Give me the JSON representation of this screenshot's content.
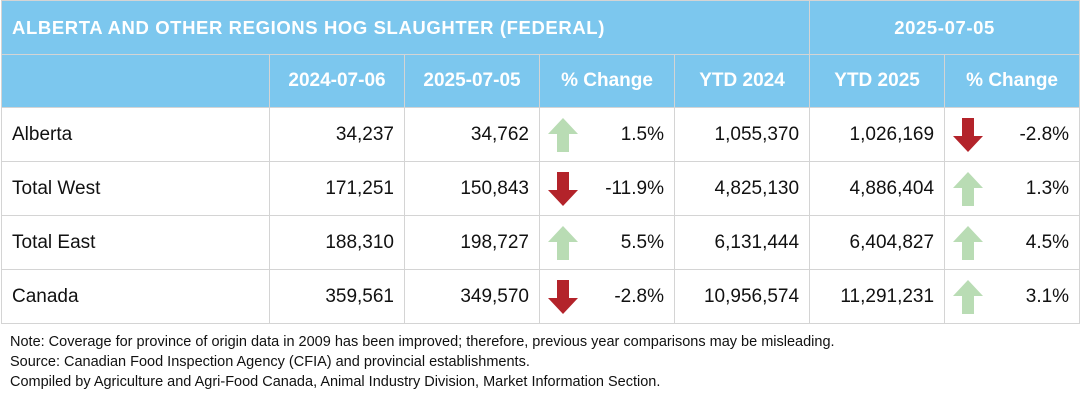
{
  "title": "ALBERTA AND OTHER REGIONS HOG SLAUGHTER (FEDERAL)",
  "title_date": "2025-07-05",
  "columns": [
    "2024-07-06",
    "2025-07-05",
    "% Change",
    "YTD 2024",
    "YTD 2025",
    "% Change"
  ],
  "colors": {
    "header_bg": "#7cc7ee",
    "up_arrow": "#b9dcb4",
    "down_arrow": "#b3232a"
  },
  "rows": [
    {
      "region": "Alberta",
      "week_2024": "34,237",
      "week_2025": "34,762",
      "week_change": "1.5%",
      "week_dir": "up",
      "ytd_2024": "1,055,370",
      "ytd_2025": "1,026,169",
      "ytd_change": "-2.8%",
      "ytd_dir": "down"
    },
    {
      "region": "Total West",
      "week_2024": "171,251",
      "week_2025": "150,843",
      "week_change": "-11.9%",
      "week_dir": "down",
      "ytd_2024": "4,825,130",
      "ytd_2025": "4,886,404",
      "ytd_change": "1.3%",
      "ytd_dir": "up"
    },
    {
      "region": "Total East",
      "week_2024": "188,310",
      "week_2025": "198,727",
      "week_change": "5.5%",
      "week_dir": "up",
      "ytd_2024": "6,131,444",
      "ytd_2025": "6,404,827",
      "ytd_change": "4.5%",
      "ytd_dir": "up"
    },
    {
      "region": "Canada",
      "week_2024": "359,561",
      "week_2025": "349,570",
      "week_change": "-2.8%",
      "week_dir": "down",
      "ytd_2024": "10,956,574",
      "ytd_2025": "11,291,231",
      "ytd_change": "3.1%",
      "ytd_dir": "up"
    }
  ],
  "notes": [
    "Note: Coverage for province of origin data in 2009 has been improved; therefore, previous year comparisons may be misleading.",
    "Source: Canadian Food Inspection Agency (CFIA) and provincial establishments.",
    "Compiled by Agriculture and Agri-Food Canada, Animal Industry Division, Market Information Section."
  ]
}
